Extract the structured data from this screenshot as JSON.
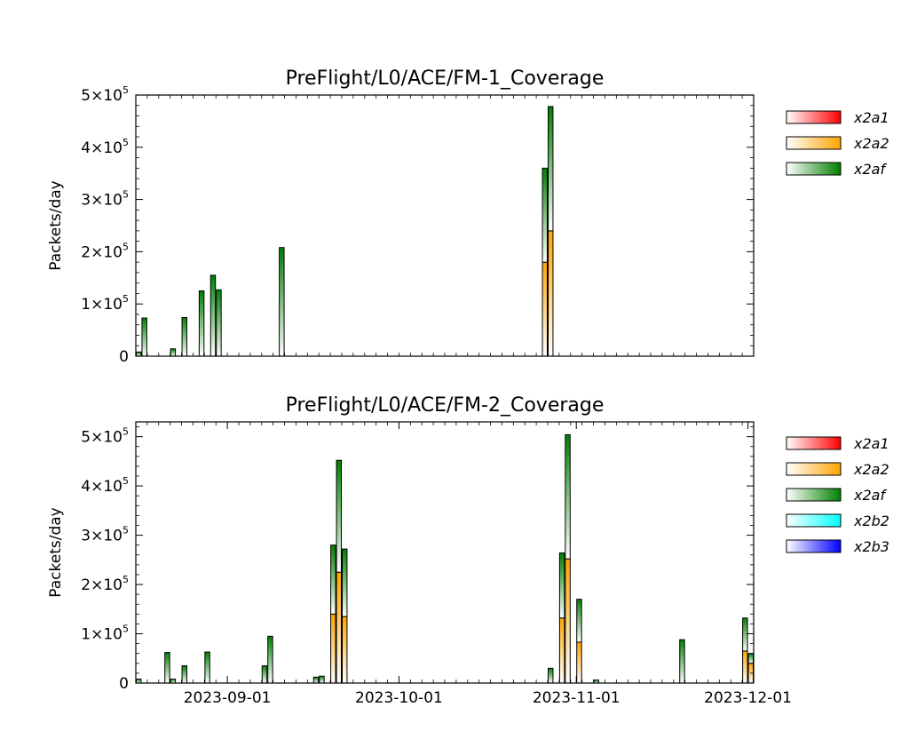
{
  "chart_data": [
    {
      "type": "bar",
      "stacked": true,
      "title": "PreFlight/L0/ACE/FM-1_Coverage",
      "ylabel": "Packets/day",
      "xlabel": "",
      "ylim": [
        0,
        500000
      ],
      "yticks": [
        0,
        100000,
        200000,
        300000,
        400000,
        500000
      ],
      "ytick_labels": [
        {
          "value": 0,
          "mant": "0",
          "exp": ""
        },
        {
          "value": 100000,
          "mant": "1×10",
          "exp": "5"
        },
        {
          "value": 200000,
          "mant": "2×10",
          "exp": "5"
        },
        {
          "value": 300000,
          "mant": "3×10",
          "exp": "5"
        },
        {
          "value": 400000,
          "mant": "4×10",
          "exp": "5"
        },
        {
          "value": 500000,
          "mant": "5×10",
          "exp": "5"
        }
      ],
      "xlim": [
        "2023-08-16",
        "2023-12-01"
      ],
      "show_xtick_labels": false,
      "legend_position": "right",
      "series": [
        {
          "name": "x2a1",
          "color": "#ff0000",
          "points": []
        },
        {
          "name": "x2a2",
          "color": "#ffa500",
          "points": [
            {
              "date": "2023-10-26",
              "value": 180000
            },
            {
              "date": "2023-10-27",
              "value": 240000
            }
          ]
        },
        {
          "name": "x2af",
          "color": "#008000",
          "points": [
            {
              "date": "2023-08-16",
              "value": 8000
            },
            {
              "date": "2023-08-17",
              "value": 73000
            },
            {
              "date": "2023-08-22",
              "value": 14000
            },
            {
              "date": "2023-08-24",
              "value": 74000
            },
            {
              "date": "2023-08-27",
              "value": 125000
            },
            {
              "date": "2023-08-29",
              "value": 155000
            },
            {
              "date": "2023-08-30",
              "value": 127000
            },
            {
              "date": "2023-09-10",
              "value": 208000
            },
            {
              "date": "2023-10-26",
              "value": 180000
            },
            {
              "date": "2023-10-27",
              "value": 238000
            }
          ]
        }
      ]
    },
    {
      "type": "bar",
      "stacked": true,
      "title": "PreFlight/L0/ACE/FM-2_Coverage",
      "ylabel": "Packets/day",
      "xlabel": "",
      "ylim": [
        0,
        530000
      ],
      "yticks": [
        0,
        100000,
        200000,
        300000,
        400000,
        500000
      ],
      "ytick_labels": [
        {
          "value": 0,
          "mant": "0",
          "exp": ""
        },
        {
          "value": 100000,
          "mant": "1×10",
          "exp": "5"
        },
        {
          "value": 200000,
          "mant": "2×10",
          "exp": "5"
        },
        {
          "value": 300000,
          "mant": "3×10",
          "exp": "5"
        },
        {
          "value": 400000,
          "mant": "4×10",
          "exp": "5"
        },
        {
          "value": 500000,
          "mant": "5×10",
          "exp": "5"
        }
      ],
      "xlim": [
        "2023-08-16",
        "2023-12-01"
      ],
      "xticks": [
        "2023-09-01",
        "2023-10-01",
        "2023-11-01",
        "2023-12-01"
      ],
      "xtick_labels": [
        "2023-09-01",
        "2023-10-01",
        "2023-11-01",
        "2023-12-01"
      ],
      "show_xtick_labels": true,
      "legend_position": "right",
      "series": [
        {
          "name": "x2a1",
          "color": "#ff0000",
          "points": []
        },
        {
          "name": "x2a2",
          "color": "#ffa500",
          "points": [
            {
              "date": "2023-09-19",
              "value": 140000
            },
            {
              "date": "2023-09-20",
              "value": 225000
            },
            {
              "date": "2023-09-21",
              "value": 135000
            },
            {
              "date": "2023-10-29",
              "value": 132000
            },
            {
              "date": "2023-10-30",
              "value": 252000
            },
            {
              "date": "2023-11-01",
              "value": 83000
            },
            {
              "date": "2023-11-30",
              "value": 65000
            },
            {
              "date": "2023-12-01",
              "value": 40000
            }
          ]
        },
        {
          "name": "x2af",
          "color": "#008000",
          "points": [
            {
              "date": "2023-08-16",
              "value": 8000
            },
            {
              "date": "2023-08-21",
              "value": 62000
            },
            {
              "date": "2023-08-22",
              "value": 8000
            },
            {
              "date": "2023-08-24",
              "value": 35000
            },
            {
              "date": "2023-08-28",
              "value": 63000
            },
            {
              "date": "2023-09-07",
              "value": 35000
            },
            {
              "date": "2023-09-08",
              "value": 95000
            },
            {
              "date": "2023-09-16",
              "value": 12000
            },
            {
              "date": "2023-09-17",
              "value": 14000
            },
            {
              "date": "2023-09-19",
              "value": 140000
            },
            {
              "date": "2023-09-20",
              "value": 227000
            },
            {
              "date": "2023-09-21",
              "value": 137000
            },
            {
              "date": "2023-10-27",
              "value": 30000
            },
            {
              "date": "2023-10-29",
              "value": 132000
            },
            {
              "date": "2023-10-30",
              "value": 252000
            },
            {
              "date": "2023-11-01",
              "value": 87000
            },
            {
              "date": "2023-11-04",
              "value": 6000
            },
            {
              "date": "2023-11-19",
              "value": 88000
            },
            {
              "date": "2023-11-30",
              "value": 67000
            },
            {
              "date": "2023-12-01",
              "value": 20000
            }
          ]
        },
        {
          "name": "x2b2",
          "color": "#00ffff",
          "points": []
        },
        {
          "name": "x2b3",
          "color": "#0000ff",
          "points": []
        }
      ]
    }
  ]
}
